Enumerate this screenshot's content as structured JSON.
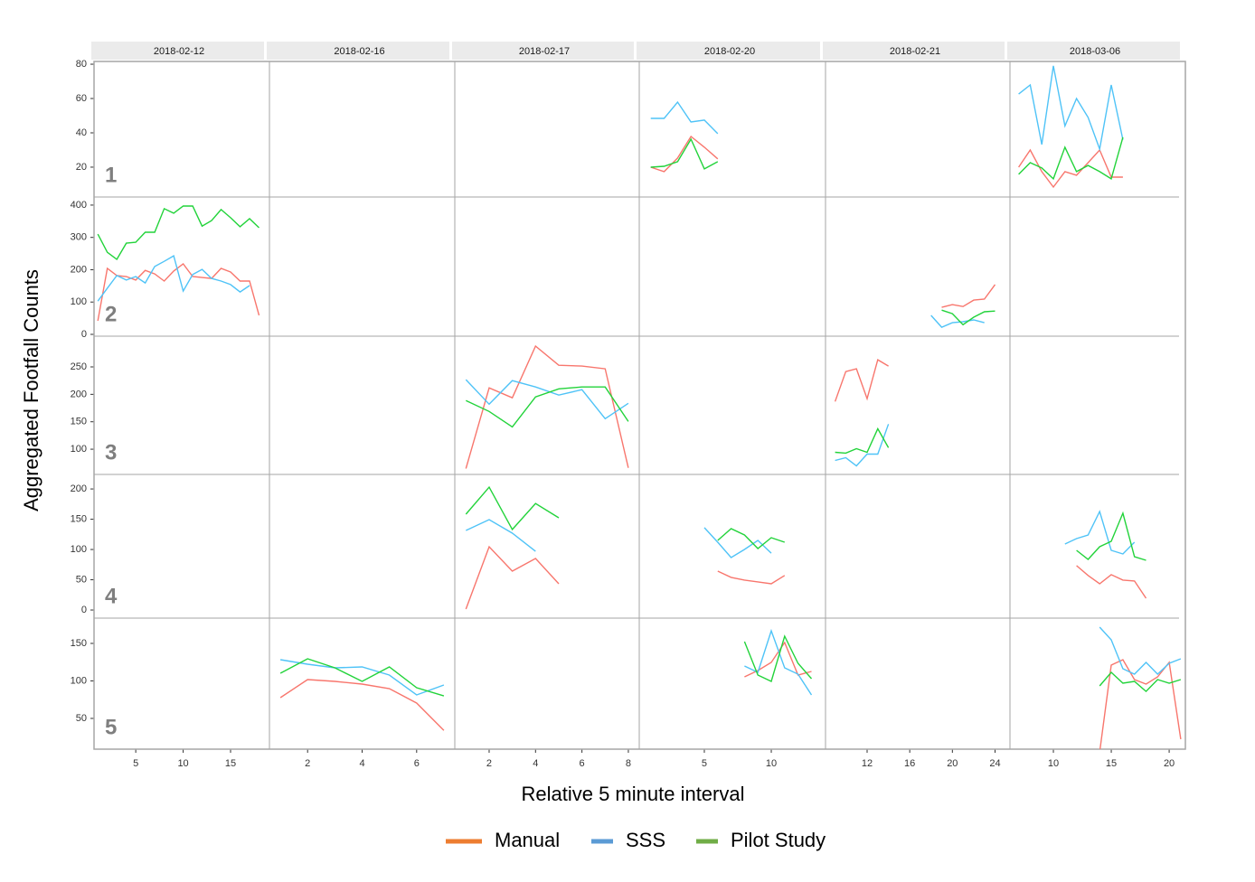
{
  "chart_data": {
    "type": "line",
    "y_label": "Aggregated Footfall Counts",
    "x_label": "Relative 5 minute interval",
    "series": [
      {
        "name": "Manual",
        "color": "#f8766d",
        "legend_color": "#ed7d31"
      },
      {
        "name": "SSS",
        "color": "#4fc3f7",
        "legend_color": "#5b9bd5"
      },
      {
        "name": "Pilot Study",
        "color": "#22d33a",
        "legend_color": "#70ad47"
      }
    ],
    "columns": [
      {
        "label": "2018-02-12",
        "xlim": [
          0.6,
          19.1
        ],
        "xticks": [
          5,
          10,
          15
        ]
      },
      {
        "label": "2018-02-16",
        "xlim": [
          0.6,
          7.4
        ],
        "xticks": [
          2,
          4,
          6
        ]
      },
      {
        "label": "2018-02-17",
        "xlim": [
          0.52,
          8.47
        ],
        "xticks": [
          2,
          4,
          6,
          8
        ]
      },
      {
        "label": "2018-02-20",
        "xlim": [
          0.14,
          14.05
        ],
        "xticks": [
          5,
          10
        ]
      },
      {
        "label": "2018-02-21",
        "xlim": [
          8.1,
          25.4
        ],
        "xticks": [
          12,
          16,
          20,
          24
        ]
      },
      {
        "label": "2018-03-06",
        "xlim": [
          6.25,
          21.4
        ],
        "xticks": [
          10,
          15,
          20
        ]
      }
    ],
    "rows": [
      {
        "label": "1",
        "ylim": [
          2.6,
          81.6
        ],
        "yticks": [
          20,
          40,
          60,
          80
        ],
        "panels": [
          null,
          null,
          null,
          [
            {
              "x": [
                1,
                2,
                3,
                4,
                5,
                6
              ],
              "values": [
                20,
                17.4,
                25.3,
                37.9,
                31.6,
                24.8
              ]
            },
            {
              "x": [
                1,
                2,
                3,
                4,
                5,
                6
              ],
              "values": [
                48.4,
                48.4,
                57.9,
                46.3,
                47.4,
                39.5
              ]
            },
            {
              "x": [
                1,
                2,
                3,
                4,
                5,
                6
              ],
              "values": [
                20,
                20.5,
                23.2,
                36.3,
                19,
                23.2
              ]
            }
          ],
          null,
          [
            {
              "x": [
                7,
                8,
                9,
                10,
                11,
                12,
                13,
                14,
                15,
                16
              ],
              "values": [
                20,
                30,
                17.4,
                8.4,
                17.4,
                15.3,
                22.6,
                30,
                14.2,
                14.2
              ]
            },
            {
              "x": [
                7,
                8,
                9,
                10,
                11,
                12,
                13,
                14,
                15,
                16
              ],
              "values": [
                62.6,
                67.9,
                33.2,
                79,
                44,
                60,
                49,
                30.5,
                67.9,
                36
              ]
            },
            {
              "x": [
                7,
                8,
                9,
                10,
                11,
                12,
                13,
                14,
                15,
                16
              ],
              "values": [
                15.8,
                22.6,
                19.5,
                13.2,
                31.6,
                17.4,
                21,
                17.4,
                13.2,
                37.4
              ]
            }
          ]
        ]
      },
      {
        "label": "2",
        "ylim": [
          -5.6,
          425
        ],
        "yticks": [
          0,
          100,
          200,
          300,
          400
        ],
        "panels": [
          [
            {
              "x": [
                1,
                2,
                3,
                4,
                5,
                6,
                7,
                8,
                9,
                10,
                11,
                12,
                13,
                14,
                15,
                16,
                17,
                18
              ],
              "values": [
                42,
                204,
                182,
                179,
                168,
                198,
                187,
                165,
                196,
                218,
                179,
                176,
                173,
                204,
                193,
                165,
                165,
                59
              ]
            },
            {
              "x": [
                1,
                2,
                3,
                4,
                5,
                6,
                7,
                8,
                9,
                10,
                11,
                12,
                13,
                14,
                15,
                16,
                17
              ],
              "values": [
                103,
                143,
                182,
                168,
                179,
                159,
                210,
                226,
                243,
                134,
                185,
                201,
                173,
                165,
                154,
                131,
                151
              ]
            },
            {
              "x": [
                1,
                2,
                3,
                4,
                5,
                6,
                7,
                8,
                9,
                10,
                11,
                12,
                13,
                14,
                15,
                16,
                17,
                18
              ],
              "values": [
                310,
                254,
                232,
                282,
                285,
                316,
                316,
                389,
                375,
                397,
                397,
                335,
                352,
                386,
                361,
                333,
                358,
                330
              ]
            }
          ],
          null,
          null,
          null,
          [
            {
              "x": [
                19,
                20,
                21,
                22,
                23,
                24
              ],
              "values": [
                83.7,
                92,
                86,
                106,
                109,
                154
              ]
            },
            {
              "x": [
                18,
                19,
                20,
                21,
                22,
                23
              ],
              "values": [
                58.6,
                22,
                36,
                39,
                44.6,
                36
              ]
            },
            {
              "x": [
                19,
                20,
                21,
                22,
                23,
                24
              ],
              "values": [
                75,
                64,
                30,
                53,
                70,
                72
              ]
            }
          ],
          null
        ]
      },
      {
        "label": "3",
        "ylim": [
          54,
          306
        ],
        "yticks": [
          100,
          150,
          200,
          250
        ],
        "panels": [
          null,
          null,
          [
            {
              "x": [
                1,
                2,
                3,
                4,
                5,
                6,
                7,
                8
              ],
              "values": [
                64.7,
                211.8,
                193.6,
                287.8,
                252.9,
                251.5,
                246.5,
                66
              ]
            },
            {
              "x": [
                1,
                2,
                3,
                4,
                5,
                6,
                7,
                8
              ],
              "values": [
                226.7,
                182,
                225,
                213.4,
                198.6,
                208.5,
                155.6,
                183.7
              ]
            },
            {
              "x": [
                1,
                2,
                3,
                4,
                5,
                6,
                7,
                8
              ],
              "values": [
                188.6,
                168.8,
                140.7,
                195.3,
                210,
                213.4,
                213.4,
                150.6
              ]
            }
          ],
          null,
          [
            {
              "x": [
                9,
                10,
                11,
                12,
                13,
                14
              ],
              "values": [
                187,
                241.5,
                246.5,
                192,
                263,
                251.5
              ]
            },
            {
              "x": [
                9,
                10,
                11,
                12,
                13,
                14
              ],
              "values": [
                79.5,
                84.5,
                69.6,
                91,
                91,
                145.7
              ]
            },
            {
              "x": [
                9,
                10,
                11,
                12,
                13,
                14
              ],
              "values": [
                94.4,
                92.8,
                101,
                94.4,
                137.4,
                102.7
              ]
            }
          ],
          null
        ]
      },
      {
        "label": "4",
        "ylim": [
          -13.4,
          224
        ],
        "yticks": [
          0,
          50,
          100,
          150,
          200
        ],
        "panels": [
          null,
          null,
          [
            {
              "x": [
                1,
                2,
                3,
                4,
                5
              ],
              "values": [
                1.6,
                104.6,
                64.3,
                85.2,
                43.4
              ]
            },
            {
              "x": [
                1,
                2,
                3,
                4
              ],
              "values": [
                131.5,
                149.4,
                127,
                97
              ]
            },
            {
              "x": [
                1,
                2,
                3,
                4,
                5
              ],
              "values": [
                158.3,
                203,
                133,
                176,
                152.4
              ]
            }
          ],
          [
            {
              "x": [
                6,
                7,
                8,
                9,
                10,
                11
              ],
              "values": [
                64.3,
                54,
                49.4,
                46.4,
                43.4,
                57
              ]
            },
            {
              "x": [
                5,
                6,
                7,
                8,
                9,
                10
              ],
              "values": [
                136,
                112,
                86.7,
                100,
                115,
                94
              ]
            },
            {
              "x": [
                6,
                7,
                8,
                9,
                10,
                11
              ],
              "values": [
                115,
                134.4,
                124,
                101.6,
                119.5,
                112
              ]
            }
          ],
          null,
          [
            {
              "x": [
                12,
                13,
                14,
                15,
                16,
                17,
                18
              ],
              "values": [
                73.3,
                57,
                43.4,
                58.4,
                49.4,
                48,
                19.5
              ]
            },
            {
              "x": [
                11,
                12,
                13,
                14,
                15,
                16,
                17
              ],
              "values": [
                109,
                118,
                124,
                162.8,
                98.6,
                92.6,
                112
              ]
            },
            {
              "x": [
                12,
                13,
                14,
                15,
                16,
                17,
                18
              ],
              "values": [
                98.6,
                83.7,
                104.6,
                113.5,
                160,
                88,
                82.2
              ]
            }
          ]
        ]
      },
      {
        "label": "5",
        "ylim": [
          9,
          183.7
        ],
        "yticks": [
          50,
          100,
          150
        ],
        "panels": [
          null,
          [
            {
              "x": [
                1,
                2,
                3,
                4,
                5,
                6,
                7
              ],
              "values": [
                77.7,
                101.8,
                99.4,
                95.7,
                89.7,
                70.4,
                34
              ]
            },
            {
              "x": [
                1,
                2,
                3,
                4,
                5,
                6,
                7
              ],
              "values": [
                128.3,
                122.3,
                117.4,
                118.6,
                107.8,
                81.3,
                94.5
              ]
            },
            {
              "x": [
                1,
                2,
                3,
                4,
                5,
                6,
                7
              ],
              "values": [
                110.2,
                129.5,
                117.4,
                99.4,
                118.6,
                90.9,
                80
              ]
            }
          ],
          null,
          [
            {
              "x": [
                8,
                9,
                10,
                11,
                12,
                13
              ],
              "values": [
                105.4,
                113.8,
                124.7,
                151.2,
                107.8,
                112.6
              ]
            },
            {
              "x": [
                8,
                9,
                10,
                11,
                12,
                13
              ],
              "values": [
                119.8,
                111.4,
                166.8,
                117.4,
                109,
                81.3
              ]
            },
            {
              "x": [
                8,
                9,
                10,
                11,
                12,
                13
              ],
              "values": [
                152.4,
                107.8,
                99.4,
                159.6,
                123.5,
                103
              ]
            }
          ],
          null,
          [
            {
              "x": [
                14,
                15,
                16,
                17,
                18,
                19,
                20,
                21
              ],
              "values": [
                5,
                121,
                128.3,
                101.8,
                95.7,
                105.4,
                124.7,
                22.3
              ]
            },
            {
              "x": [
                14,
                15,
                16,
                17,
                18,
                19,
                20,
                21
              ],
              "values": [
                171.7,
                154.8,
                116.2,
                109,
                124.7,
                109,
                123.5,
                129.5
              ]
            },
            {
              "x": [
                14,
                15,
                16,
                17,
                18,
                19,
                20,
                21
              ],
              "values": [
                93.3,
                111.4,
                97,
                99.4,
                86,
                101.8,
                97,
                101.8
              ]
            }
          ]
        ]
      }
    ]
  }
}
